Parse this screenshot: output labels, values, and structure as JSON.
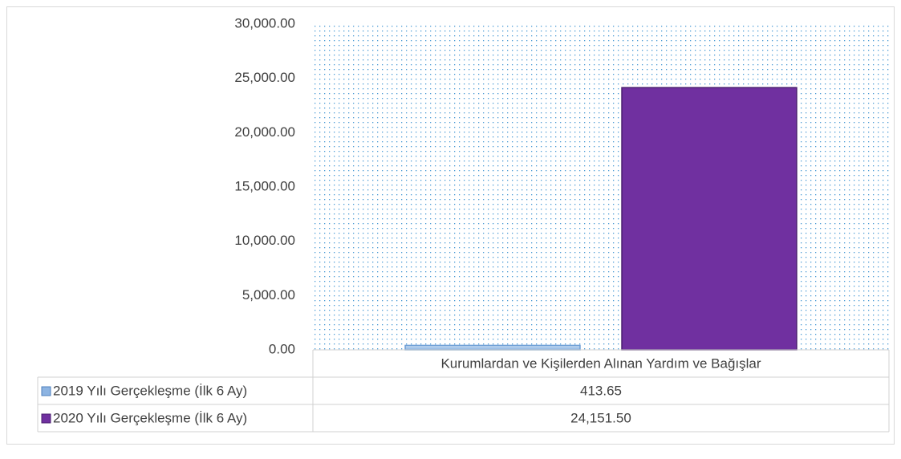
{
  "chart_data": {
    "type": "bar",
    "categories": [
      "Kurumlardan ve Kişilerden Alınan Yardım ve Bağışlar"
    ],
    "series": [
      {
        "name": "2019 Yılı Gerçekleşme (İlk 6 Ay)",
        "color": "#8db4e2",
        "values": [
          413.65
        ],
        "value_labels": [
          "413.65"
        ]
      },
      {
        "name": "2020 Yılı Gerçekleşme (İlk 6 Ay)",
        "color": "#7030a0",
        "values": [
          24151.5
        ],
        "value_labels": [
          "24,151.50"
        ]
      }
    ],
    "ylim": [
      0,
      30000
    ],
    "yticks": [
      {
        "value": 0,
        "label": "0.00"
      },
      {
        "value": 5000,
        "label": "5,000.00"
      },
      {
        "value": 10000,
        "label": "10,000.00"
      },
      {
        "value": 15000,
        "label": "15,000.00"
      },
      {
        "value": 20000,
        "label": "20,000.00"
      },
      {
        "value": 25000,
        "label": "25,000.00"
      },
      {
        "value": 30000,
        "label": "30,000.00"
      }
    ],
    "data_table": true
  }
}
